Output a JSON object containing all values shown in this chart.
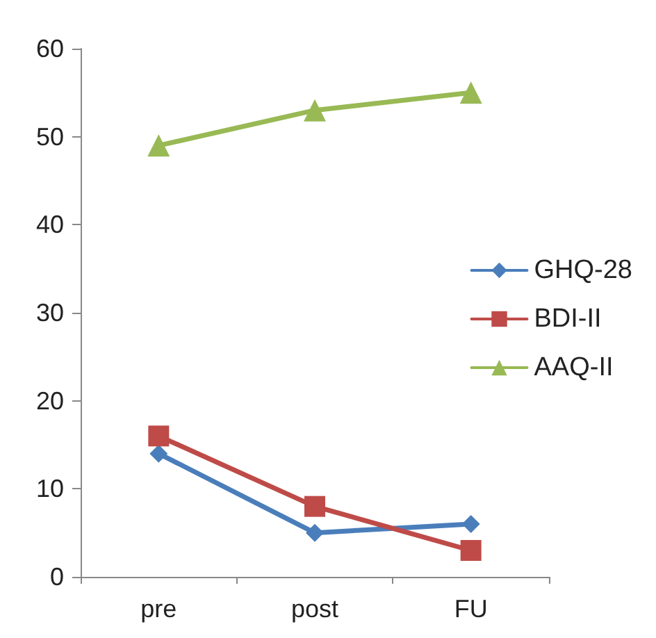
{
  "chart_data": {
    "type": "line",
    "categories": [
      "pre",
      "post",
      "FU"
    ],
    "series": [
      {
        "name": "GHQ-28",
        "color": "#4a7ebb",
        "marker": "diamond",
        "values": [
          14,
          5,
          6
        ]
      },
      {
        "name": "BDI-II",
        "color": "#be4b48",
        "marker": "square",
        "values": [
          16,
          8,
          3
        ]
      },
      {
        "name": "AAQ-II",
        "color": "#98b954",
        "marker": "triangle",
        "values": [
          49,
          53,
          55
        ]
      }
    ],
    "ylim": [
      0,
      60
    ],
    "yticks": [
      0,
      10,
      20,
      30,
      40,
      50,
      60
    ],
    "grid": false,
    "legend": "right",
    "line_style": "solid"
  }
}
